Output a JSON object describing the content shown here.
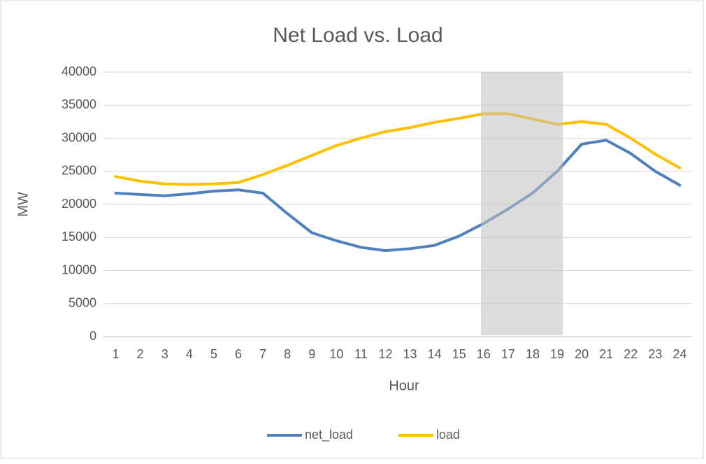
{
  "chart_data": {
    "type": "line",
    "title": "Net Load vs. Load",
    "x_label": "Hour",
    "y_label": "MW",
    "categories": [
      "1",
      "2",
      "3",
      "4",
      "5",
      "6",
      "7",
      "8",
      "9",
      "10",
      "11",
      "12",
      "13",
      "14",
      "15",
      "16",
      "17",
      "18",
      "19",
      "20",
      "21",
      "22",
      "23",
      "24"
    ],
    "series": [
      {
        "name": "net_load",
        "color": "#4f81bd",
        "values": [
          21700,
          21500,
          21300,
          21600,
          22000,
          22200,
          21700,
          18600,
          15700,
          14500,
          13500,
          13000,
          13300,
          13800,
          15200,
          17100,
          19300,
          21700,
          25000,
          29100,
          29700,
          27700,
          25000,
          22900
        ]
      },
      {
        "name": "load",
        "color": "#ffc000",
        "values": [
          24200,
          23500,
          23100,
          23000,
          23100,
          23300,
          24500,
          25900,
          27400,
          28900,
          30000,
          31000,
          31600,
          32400,
          33000,
          33700,
          33700,
          32900,
          32100,
          32500,
          32100,
          30000,
          27600,
          25500
        ]
      }
    ],
    "ylim": [
      0,
      40000
    ],
    "yticks": [
      0,
      5000,
      10000,
      15000,
      20000,
      25000,
      30000,
      35000,
      40000
    ],
    "grid": true,
    "legend": "bottom"
  }
}
